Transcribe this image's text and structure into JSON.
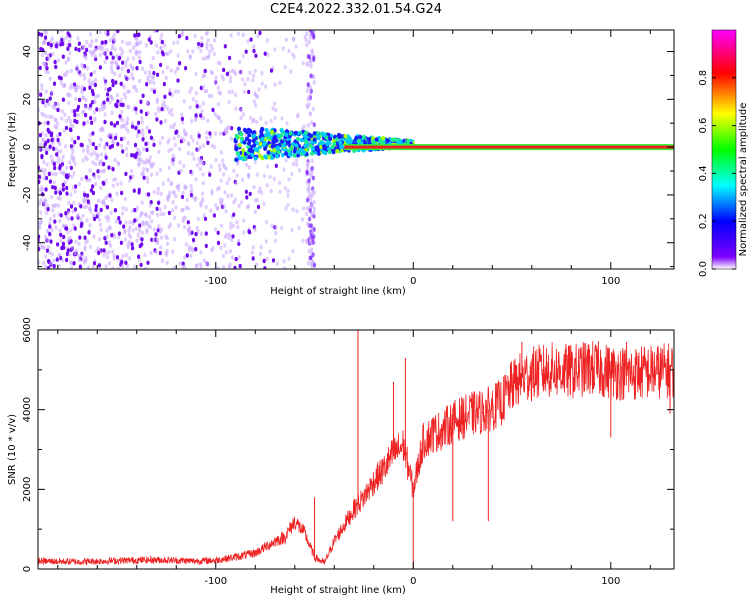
{
  "title": "C2E4.2022.332.01.54.G24",
  "chart_data": [
    {
      "type": "heatmap",
      "title": "C2E4.2022.332.01.54.G24",
      "xlabel": "Height of straight line (km)",
      "ylabel": "Frequency (Hz)",
      "xlim": [
        -190,
        132
      ],
      "ylim": [
        -51,
        49
      ],
      "xticks": [
        -100,
        0,
        100
      ],
      "yticks": [
        -40,
        -20,
        0,
        20,
        40
      ],
      "colorbar": {
        "label": "Normalized spectral amplitude",
        "range": [
          0,
          1
        ],
        "ticks": [
          "0.0",
          "0.2",
          "0.4",
          "0.6",
          "0.8"
        ],
        "colors": [
          "#ffffff",
          "#7f00ff",
          "#0000ff",
          "#00ffff",
          "#00ff00",
          "#ffff00",
          "#ff0000",
          "#ff00ff"
        ]
      },
      "features": {
        "noise_region_x": [
          -190,
          -50
        ],
        "noise_column_x": -52,
        "signal_trace_start_x": -90,
        "signal_line_y": 0,
        "signal_line_amplitude": 0.85
      }
    },
    {
      "type": "line",
      "xlabel": "Height of straight line (km)",
      "ylabel": "SNR (10 * v/v)",
      "xlim": [
        -190,
        132
      ],
      "ylim": [
        0,
        6000
      ],
      "xticks": [
        -100,
        0,
        100
      ],
      "yticks": [
        0,
        2000,
        4000,
        6000
      ],
      "color": "#ee2222",
      "x": [
        -190,
        -170,
        -150,
        -130,
        -110,
        -100,
        -90,
        -80,
        -75,
        -70,
        -65,
        -60,
        -55,
        -50,
        -45,
        -40,
        -35,
        -30,
        -25,
        -20,
        -15,
        -10,
        -5,
        0,
        5,
        10,
        15,
        20,
        25,
        30,
        35,
        40,
        45,
        50,
        55,
        60,
        70,
        80,
        90,
        100,
        110,
        120,
        132
      ],
      "y": [
        200,
        180,
        210,
        230,
        200,
        220,
        300,
        400,
        550,
        700,
        800,
        1200,
        900,
        300,
        150,
        700,
        1100,
        1500,
        1800,
        2200,
        2500,
        2900,
        3100,
        2000,
        3200,
        3400,
        3500,
        3700,
        3800,
        3900,
        3950,
        4050,
        4200,
        4600,
        4800,
        4900,
        5000,
        4950,
        5050,
        4950,
        4900,
        4950,
        5000
      ],
      "spikes": [
        [
          -50,
          1800
        ],
        [
          -28,
          6000
        ],
        [
          -10,
          4700
        ],
        [
          -4,
          5300
        ],
        [
          0,
          0
        ],
        [
          10,
          3800
        ],
        [
          20,
          1200
        ],
        [
          35,
          3900
        ],
        [
          38,
          1200
        ],
        [
          55,
          5700
        ],
        [
          100,
          3300
        ],
        [
          108,
          5700
        ],
        [
          130,
          3900
        ]
      ]
    }
  ]
}
